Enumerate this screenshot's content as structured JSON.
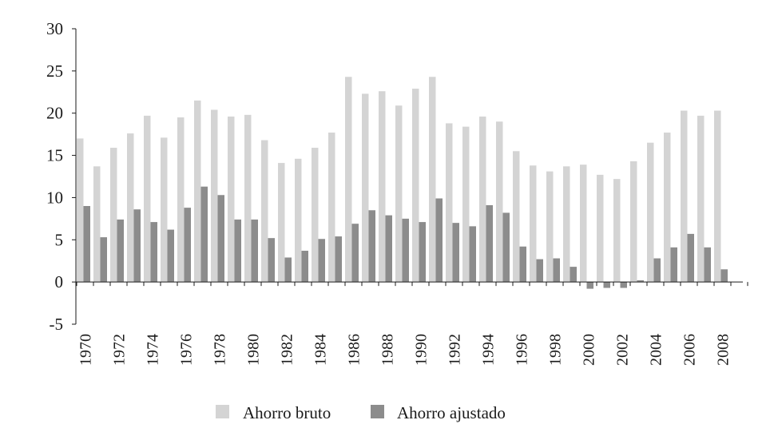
{
  "chart_data": {
    "type": "bar",
    "title": "",
    "xlabel": "",
    "ylabel": "",
    "ylim": [
      -5,
      30
    ],
    "y_ticks": [
      30,
      25,
      20,
      15,
      10,
      5,
      0,
      -5
    ],
    "grid": false,
    "legend_position": "bottom-center",
    "categories": [
      "1970",
      "1971",
      "1972",
      "1973",
      "1974",
      "1975",
      "1976",
      "1977",
      "1978",
      "1979",
      "1980",
      "1981",
      "1982",
      "1983",
      "1984",
      "1985",
      "1986",
      "1987",
      "1988",
      "1989",
      "1990",
      "1991",
      "1992",
      "1993",
      "1994",
      "1995",
      "1996",
      "1997",
      "1998",
      "1999",
      "2000",
      "2001",
      "2002",
      "2003",
      "2004",
      "2005",
      "2006",
      "2007",
      "2008",
      "2009"
    ],
    "x_tick_labels": [
      "1970",
      "1972",
      "1974",
      "1976",
      "1978",
      "1980",
      "1982",
      "1984",
      "1986",
      "1988",
      "1990",
      "1992",
      "1994",
      "1996",
      "1998",
      "2000",
      "2002",
      "2004",
      "2006",
      "2008"
    ],
    "series": [
      {
        "name": "Ahorro bruto",
        "color": "#d4d4d4",
        "values": [
          17.0,
          13.7,
          15.9,
          17.6,
          19.7,
          17.1,
          19.5,
          21.5,
          20.4,
          19.6,
          19.8,
          16.8,
          14.1,
          14.6,
          15.9,
          17.7,
          24.3,
          22.3,
          22.6,
          20.9,
          22.9,
          24.3,
          18.8,
          18.4,
          19.6,
          19.0,
          15.5,
          13.8,
          13.1,
          13.7,
          13.9,
          12.7,
          12.2,
          14.3,
          16.5,
          17.7,
          20.3,
          19.7,
          20.3,
          0
        ]
      },
      {
        "name": "Ahorro ajustado",
        "color": "#8c8c8c",
        "values": [
          9.0,
          5.3,
          7.4,
          8.6,
          7.1,
          6.2,
          8.8,
          11.3,
          10.3,
          7.4,
          7.4,
          5.2,
          2.9,
          3.7,
          5.1,
          5.4,
          6.9,
          8.5,
          7.9,
          7.5,
          7.1,
          9.9,
          7.0,
          6.6,
          9.1,
          8.2,
          4.2,
          2.7,
          2.8,
          1.8,
          -0.8,
          -0.7,
          -0.7,
          0.2,
          2.8,
          4.1,
          5.7,
          4.1,
          1.5,
          0
        ]
      }
    ]
  }
}
